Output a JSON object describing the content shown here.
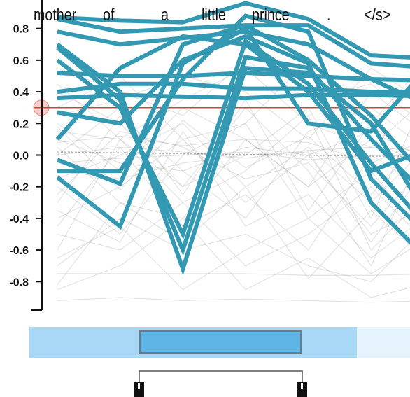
{
  "chart_data": {
    "type": "line",
    "title": "",
    "xlabel": "",
    "ylabel": "",
    "categories": [
      "mother",
      "of",
      "a",
      "little",
      "prince",
      ".",
      "</s>"
    ],
    "y_ticks": [
      0.8,
      0.6,
      0.4,
      0.2,
      0.0,
      -0.2,
      -0.4,
      -0.6,
      -0.8
    ],
    "y_tick_labels": [
      "0.8",
      "0.6",
      "0.4",
      "0.2",
      "0.0",
      "-0.2",
      "-0.4",
      "-0.6",
      "-0.8"
    ],
    "ylim": [
      -0.98,
      0.98
    ],
    "threshold": 0.3,
    "highlight_color": "#3399b3",
    "background_color": "#999999",
    "threshold_color": "#e8392c",
    "highlighted_series": [
      {
        "values": [
          0.87,
          0.85,
          0.84,
          0.96,
          0.86,
          0.63,
          0.61
        ]
      },
      {
        "values": [
          0.86,
          0.78,
          0.8,
          0.82,
          0.82,
          0.58,
          0.55
        ]
      },
      {
        "values": [
          0.78,
          0.7,
          0.74,
          0.78,
          0.7,
          0.48,
          0.3
        ]
      },
      {
        "values": [
          0.7,
          0.4,
          -0.72,
          0.55,
          0.52,
          0.2,
          -0.45
        ]
      },
      {
        "values": [
          0.68,
          0.35,
          -0.6,
          0.62,
          0.55,
          0.1,
          -0.3
        ]
      },
      {
        "values": [
          0.6,
          0.3,
          -0.5,
          0.72,
          0.45,
          -0.05,
          -0.5
        ]
      },
      {
        "values": [
          0.52,
          0.5,
          0.5,
          0.52,
          0.5,
          0.48,
          0.47
        ]
      },
      {
        "values": [
          0.4,
          0.45,
          0.45,
          0.42,
          0.42,
          0.4,
          0.4
        ]
      },
      {
        "values": [
          0.36,
          0.38,
          0.37,
          0.36,
          0.38,
          0.38,
          0.37
        ]
      },
      {
        "values": [
          0.27,
          0.2,
          0.6,
          0.75,
          0.58,
          -0.3,
          -0.7
        ]
      },
      {
        "values": [
          0.1,
          0.55,
          0.75,
          0.7,
          0.4,
          -0.1,
          0.05
        ]
      },
      {
        "values": [
          -0.03,
          -0.18,
          0.7,
          0.82,
          0.6,
          0.25,
          -0.2
        ]
      },
      {
        "values": [
          -0.1,
          -0.1,
          0.48,
          0.88,
          0.78,
          -0.15,
          -0.55
        ]
      },
      {
        "values": [
          -0.14,
          -0.45,
          0.58,
          0.8,
          0.2,
          0.15,
          0.6
        ]
      }
    ],
    "background_series": [
      {
        "values": [
          -0.6,
          0.1,
          -0.2,
          0.3,
          -0.1,
          -0.7,
          0.2
        ]
      },
      {
        "values": [
          -0.75,
          -0.75,
          -0.75,
          -0.75,
          -0.76,
          -0.76,
          -0.75
        ]
      },
      {
        "values": [
          -0.92,
          -0.9,
          -0.92,
          -0.91,
          -0.92,
          -0.93,
          -0.92
        ]
      },
      {
        "values": [
          -0.4,
          -0.2,
          0.1,
          -0.3,
          0.0,
          -0.5,
          -0.3
        ]
      },
      {
        "values": [
          0.2,
          -0.1,
          0.3,
          0.1,
          -0.2,
          0.4,
          0.1
        ]
      },
      {
        "values": [
          -0.2,
          -0.5,
          0.0,
          0.2,
          -0.4,
          -0.1,
          -0.6
        ]
      },
      {
        "values": [
          0.0,
          0.05,
          0.02,
          -0.02,
          0.03,
          0.05,
          0.02
        ]
      },
      {
        "values": [
          -0.05,
          -0.02,
          0.0,
          0.02,
          -0.03,
          0.0,
          -0.01
        ]
      },
      {
        "values": [
          0.15,
          0.1,
          -0.3,
          -0.1,
          0.25,
          -0.6,
          -0.2
        ]
      },
      {
        "values": [
          -0.3,
          0.25,
          -0.1,
          -0.4,
          0.15,
          0.3,
          0.0
        ]
      },
      {
        "values": [
          0.4,
          0.2,
          -0.2,
          0.0,
          0.3,
          -0.4,
          0.5
        ]
      },
      {
        "values": [
          -0.7,
          -0.4,
          -0.6,
          -0.5,
          -0.7,
          -0.8,
          -0.4
        ]
      },
      {
        "values": [
          0.3,
          0.5,
          0.1,
          0.2,
          0.6,
          0.2,
          0.65
        ]
      },
      {
        "values": [
          -0.15,
          0.0,
          0.2,
          -0.2,
          0.05,
          -0.3,
          0.1
        ]
      },
      {
        "values": [
          0.05,
          -0.3,
          -0.4,
          0.1,
          -0.2,
          0.1,
          -0.1
        ]
      },
      {
        "values": [
          -0.5,
          -0.6,
          -0.3,
          -0.7,
          -0.5,
          -0.2,
          -0.6
        ]
      },
      {
        "values": [
          0.25,
          0.35,
          0.5,
          0.4,
          0.1,
          0.55,
          0.3
        ]
      },
      {
        "values": [
          -0.25,
          0.15,
          0.05,
          -0.15,
          -0.05,
          -0.45,
          0.0
        ]
      },
      {
        "values": [
          0.1,
          -0.05,
          -0.1,
          0.05,
          0.0,
          0.15,
          -0.05
        ]
      },
      {
        "values": [
          -0.82,
          -0.3,
          -0.55,
          -0.2,
          -0.78,
          -0.35,
          -0.7
        ]
      },
      {
        "values": [
          0.45,
          0.1,
          0.35,
          0.55,
          0.2,
          0.05,
          0.4
        ]
      },
      {
        "values": [
          -0.35,
          -0.55,
          0.15,
          -0.45,
          -0.25,
          -0.65,
          -0.35
        ]
      },
      {
        "values": [
          0.0,
          0.3,
          -0.25,
          0.35,
          -0.35,
          0.2,
          -0.15
        ]
      },
      {
        "values": [
          -0.1,
          -0.15,
          -0.05,
          0.0,
          0.02,
          -0.55,
          -0.02
        ]
      },
      {
        "values": [
          0.18,
          -0.22,
          0.22,
          -0.08,
          0.12,
          -0.25,
          0.18
        ]
      },
      {
        "values": [
          -0.65,
          -0.45,
          -0.85,
          -0.6,
          -0.4,
          -0.75,
          -0.5
        ]
      },
      {
        "values": [
          0.55,
          0.4,
          0.25,
          0.6,
          0.35,
          0.45,
          0.15
        ]
      },
      {
        "values": [
          -0.45,
          0.05,
          -0.45,
          -0.25,
          -0.6,
          0.0,
          -0.25
        ]
      },
      {
        "values": [
          0.08,
          0.12,
          0.06,
          0.1,
          0.08,
          -0.05,
          0.12
        ]
      },
      {
        "values": [
          -0.85,
          -0.7,
          -0.4,
          -0.85,
          -0.65,
          -0.9,
          -0.8
        ]
      }
    ]
  },
  "tokens": [
    {
      "text": "mother"
    },
    {
      "text": "of"
    },
    {
      "text": "a"
    },
    {
      "text": "little"
    },
    {
      "text": "prince"
    },
    {
      "text": "."
    },
    {
      "text": "</s>"
    }
  ]
}
